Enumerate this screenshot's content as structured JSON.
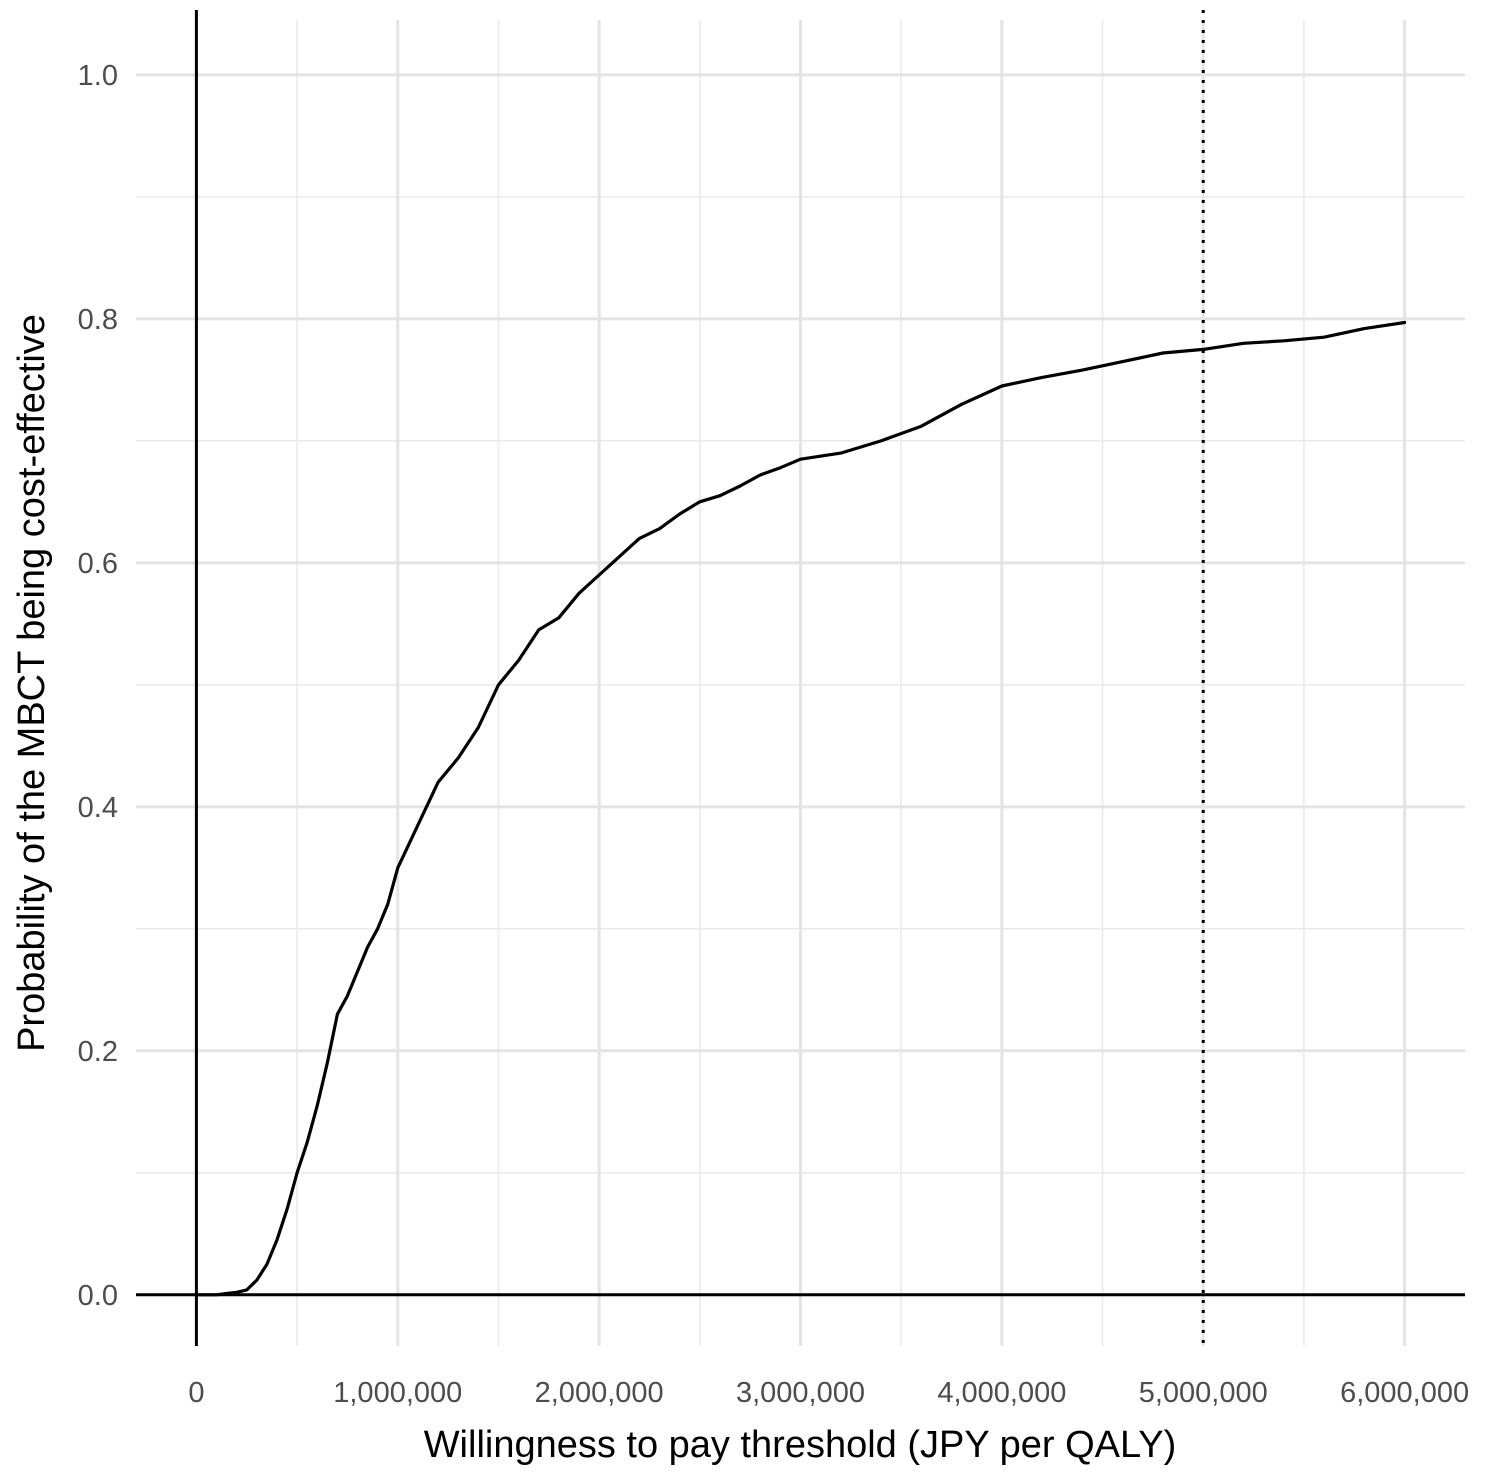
{
  "chart_data": {
    "type": "line",
    "title": "",
    "xlabel": "Willingness to pay threshold (JPY per QALY)",
    "ylabel": "Probability of the MBCT being cost-effective",
    "xlim": [
      -300000,
      6300000
    ],
    "ylim": [
      -0.042,
      1.045
    ],
    "x_ticks": [
      0,
      1000000,
      2000000,
      3000000,
      4000000,
      5000000,
      6000000
    ],
    "x_tick_labels": [
      "0",
      "1,000,000",
      "2,000,000",
      "3,000,000",
      "4,000,000",
      "5,000,000",
      "6,000,000"
    ],
    "y_ticks": [
      0.0,
      0.2,
      0.4,
      0.6,
      0.8,
      1.0
    ],
    "y_tick_labels": [
      "0.0",
      "0.2",
      "0.4",
      "0.6",
      "0.8",
      "1.0"
    ],
    "grid": true,
    "reference_lines": {
      "x": 0,
      "y": 0
    },
    "threshold_line": {
      "x": 5000000,
      "style": "dotted"
    },
    "series": [
      {
        "x": [
          0,
          100000,
          150000,
          200000,
          250000,
          300000,
          350000,
          400000,
          450000,
          500000,
          550000,
          600000,
          650000,
          700000,
          750000,
          800000,
          850000,
          900000,
          950000,
          1000000,
          1100000,
          1200000,
          1300000,
          1400000,
          1500000,
          1600000,
          1700000,
          1800000,
          1900000,
          2000000,
          2100000,
          2200000,
          2300000,
          2400000,
          2500000,
          2600000,
          2700000,
          2800000,
          2900000,
          3000000,
          3200000,
          3400000,
          3600000,
          3800000,
          4000000,
          4200000,
          4400000,
          4600000,
          4800000,
          5000000,
          5200000,
          5400000,
          5600000,
          5800000,
          6000000
        ],
        "values": [
          0.0,
          0.0,
          0.001,
          0.002,
          0.004,
          0.012,
          0.025,
          0.045,
          0.07,
          0.1,
          0.125,
          0.155,
          0.19,
          0.23,
          0.245,
          0.265,
          0.285,
          0.3,
          0.32,
          0.35,
          0.385,
          0.42,
          0.44,
          0.465,
          0.5,
          0.52,
          0.545,
          0.555,
          0.575,
          0.59,
          0.605,
          0.62,
          0.628,
          0.64,
          0.65,
          0.655,
          0.663,
          0.672,
          0.678,
          0.685,
          0.69,
          0.7,
          0.712,
          0.73,
          0.745,
          0.752,
          0.758,
          0.765,
          0.772,
          0.775,
          0.78,
          0.782,
          0.785,
          0.792,
          0.797
        ]
      }
    ]
  }
}
